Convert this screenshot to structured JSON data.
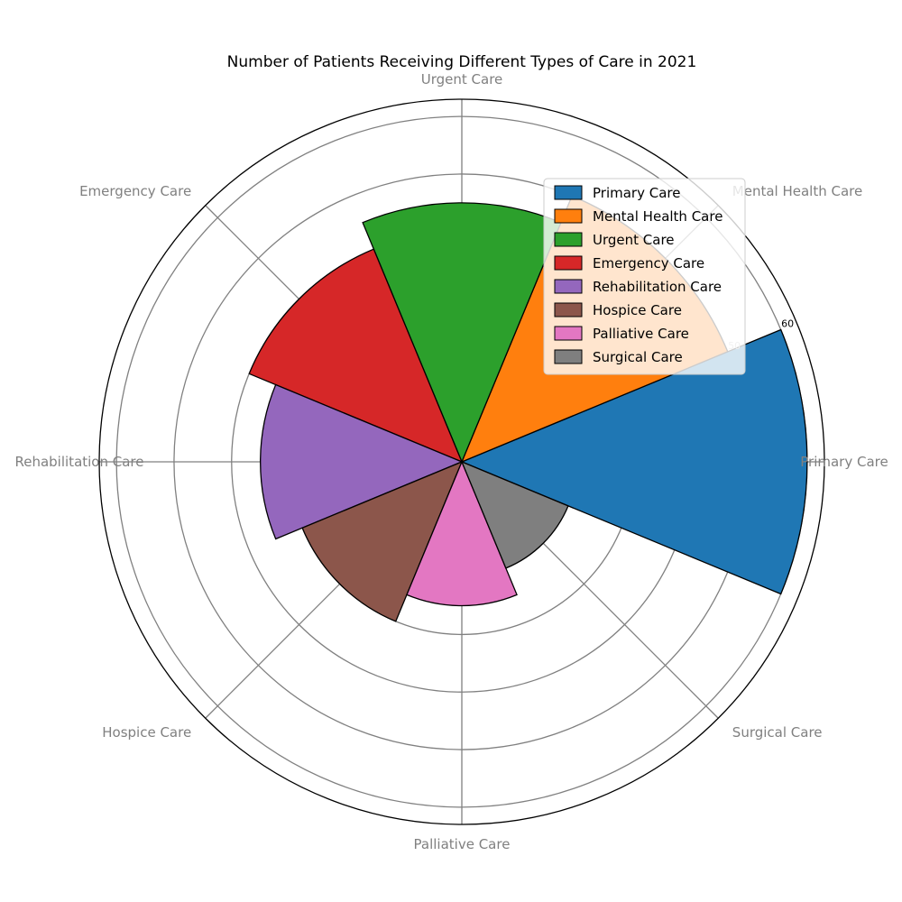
{
  "chart_data": {
    "type": "polar-bar",
    "title": "Number of Patients Receiving Different Types of Care in 2021",
    "categories": [
      "Primary Care",
      "Mental Health Care",
      "Urgent Care",
      "Emergency Care",
      "Rehabilitation Care",
      "Hospice Care",
      "Palliative Care",
      "Surgical Care"
    ],
    "values": [
      60,
      50,
      45,
      40,
      35,
      30,
      25,
      20
    ],
    "colors": [
      "#1f77b4",
      "#ff7f0e",
      "#2ca02c",
      "#d62728",
      "#9467bd",
      "#8c564b",
      "#e377c2",
      "#7f7f7f"
    ],
    "r_ticks": [
      50,
      60
    ],
    "grid": true,
    "legend_position": "upper-right"
  }
}
